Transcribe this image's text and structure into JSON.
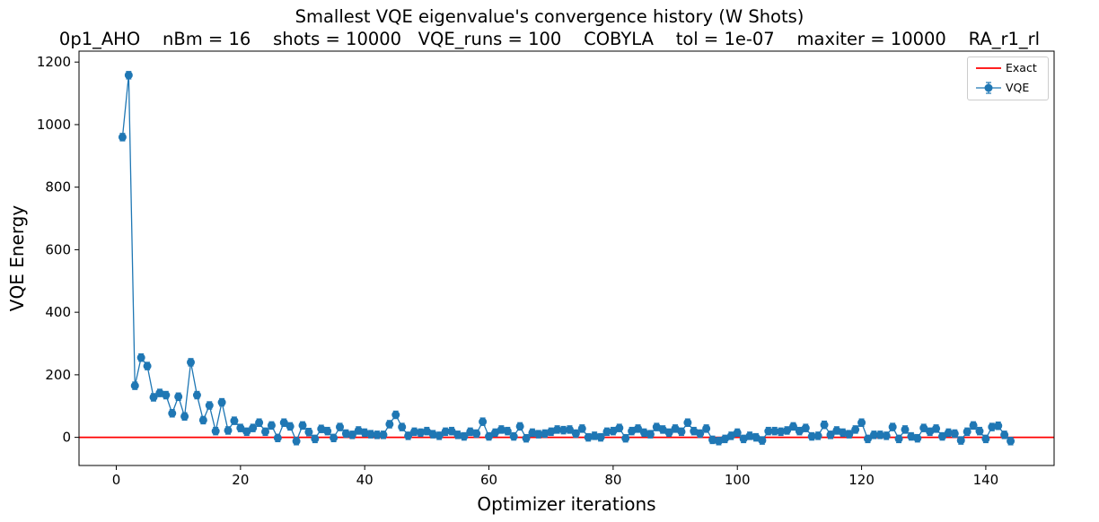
{
  "chart_data": {
    "type": "line",
    "title": "Smallest VQE eigenvalue's convergence history (W Shots)",
    "subtitle": "0p1_AHO    nBm = 16    shots = 10000   VQE_runs = 100    COBYLA    tol = 1e-07    maxiter = 10000    RA_r1_rl",
    "xlabel": "Optimizer iterations",
    "ylabel": "VQE Energy",
    "xlim": [
      -6,
      151
    ],
    "ylim": [
      -90,
      1235
    ],
    "xticks": [
      0,
      20,
      40,
      60,
      80,
      100,
      120,
      140
    ],
    "yticks": [
      0,
      200,
      400,
      600,
      800,
      1000,
      1200
    ],
    "grid": false,
    "legend_position": "top-right",
    "series": [
      {
        "name": "Exact",
        "kind": "hline",
        "y": 0,
        "color": "#ff0000"
      },
      {
        "name": "VQE",
        "kind": "errorbar-line",
        "color": "#1f77b4",
        "x": [
          1,
          2,
          3,
          4,
          5,
          6,
          7,
          8,
          9,
          10,
          11,
          12,
          13,
          14,
          15,
          16,
          17,
          18,
          19,
          20,
          21,
          22,
          23,
          24,
          25,
          26,
          27,
          28,
          29,
          30,
          31,
          32,
          33,
          34,
          35,
          36,
          37,
          38,
          39,
          40,
          41,
          42,
          43,
          44,
          45,
          46,
          47,
          48,
          49,
          50,
          51,
          52,
          53,
          54,
          55,
          56,
          57,
          58,
          59,
          60,
          61,
          62,
          63,
          64,
          65,
          66,
          67,
          68,
          69,
          70,
          71,
          72,
          73,
          74,
          75,
          76,
          77,
          78,
          79,
          80,
          81,
          82,
          83,
          84,
          85,
          86,
          87,
          88,
          89,
          90,
          91,
          92,
          93,
          94,
          95,
          96,
          97,
          98,
          99,
          100,
          101,
          102,
          103,
          104,
          105,
          106,
          107,
          108,
          109,
          110,
          111,
          112,
          113,
          114,
          115,
          116,
          117,
          118,
          119,
          120,
          121,
          122,
          123,
          124,
          125,
          126,
          127,
          128,
          129,
          130,
          131,
          132,
          133,
          134,
          135,
          136,
          137,
          138,
          139,
          140,
          141,
          142,
          143,
          144
        ],
        "y": [
          960,
          1158,
          165,
          255,
          228,
          128,
          142,
          135,
          77,
          130,
          67,
          240,
          135,
          55,
          102,
          20,
          112,
          22,
          53,
          30,
          18,
          30,
          47,
          18,
          38,
          -2,
          47,
          35,
          -12,
          38,
          17,
          -5,
          27,
          20,
          -2,
          33,
          12,
          8,
          22,
          15,
          10,
          8,
          8,
          42,
          72,
          33,
          5,
          18,
          15,
          20,
          10,
          5,
          18,
          20,
          8,
          3,
          18,
          12,
          50,
          3,
          15,
          25,
          20,
          3,
          35,
          -3,
          15,
          10,
          12,
          18,
          25,
          23,
          25,
          12,
          28,
          0,
          5,
          0,
          18,
          20,
          30,
          -3,
          20,
          28,
          15,
          10,
          33,
          25,
          15,
          28,
          18,
          47,
          20,
          12,
          28,
          -8,
          -12,
          -5,
          5,
          15,
          -5,
          5,
          0,
          -10,
          20,
          20,
          18,
          22,
          35,
          20,
          30,
          3,
          5,
          40,
          8,
          22,
          15,
          10,
          25,
          47,
          -5,
          8,
          8,
          5,
          33,
          -5,
          25,
          3,
          -3,
          30,
          18,
          28,
          3,
          15,
          12,
          -10,
          18,
          38,
          20,
          -5,
          33,
          37,
          8,
          -12
        ],
        "yerr_approx": 12
      }
    ]
  }
}
